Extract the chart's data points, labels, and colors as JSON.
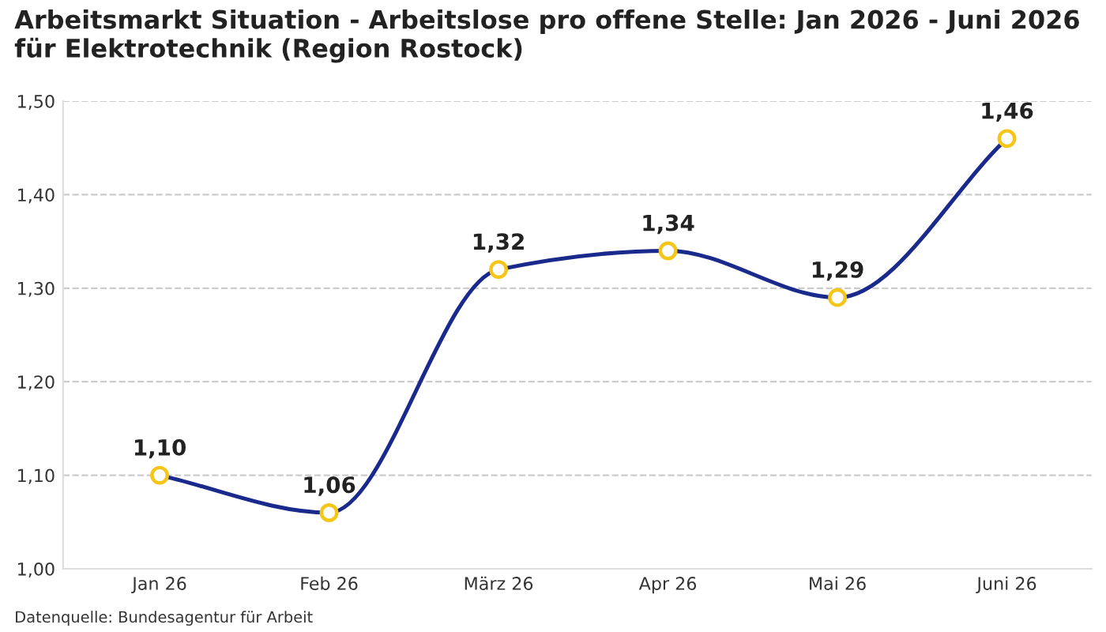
{
  "chart_data": {
    "type": "line",
    "title": "Arbeitsmarkt Situation - Arbeitslose pro offene Stelle: Jan 2026 - Juni 2026 für Elektrotechnik (Region Rostock)",
    "categories": [
      "Jan 26",
      "Feb 26",
      "März 26",
      "Apr 26",
      "Mai 26",
      "Juni 26"
    ],
    "series": [
      {
        "color": "#1a2a8c",
        "values": [
          1.1,
          1.06,
          1.32,
          1.34,
          1.29,
          1.46
        ],
        "value_labels": [
          "1,10",
          "1,06",
          "1,32",
          "1,34",
          "1,29",
          "1,46"
        ]
      }
    ],
    "ylim": [
      1.0,
      1.5
    ],
    "yticks": [
      {
        "value": 1.0,
        "label": "1,00"
      },
      {
        "value": 1.1,
        "label": "1,10"
      },
      {
        "value": 1.2,
        "label": "1,20"
      },
      {
        "value": 1.3,
        "label": "1,30"
      },
      {
        "value": 1.4,
        "label": "1,40"
      },
      {
        "value": 1.5,
        "label": "1,50"
      }
    ],
    "grid": "y",
    "marker": "circle",
    "line_style": "solid",
    "annotations": [
      "Datenquelle: Bundesagentur für Arbeit"
    ]
  }
}
